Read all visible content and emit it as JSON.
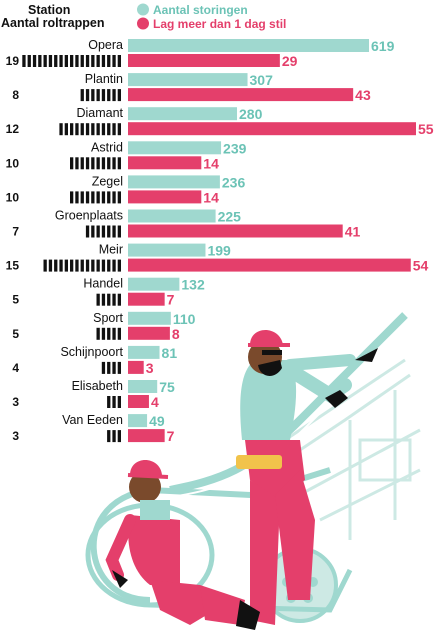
{
  "legend": {
    "station_label": "Station",
    "escalators_label": "Aantal roltrappen",
    "series_a_label": "Aantal storingen",
    "series_b_label": "Lag meer dan 1 dag stil"
  },
  "colors": {
    "teal": "#9fd8cf",
    "teal_text": "#6cc3b6",
    "pink": "#e43f6b",
    "black": "#111111"
  },
  "chart_data": {
    "type": "bar",
    "orientation": "horizontal",
    "categories": [
      "Opera",
      "Plantin",
      "Diamant",
      "Astrid",
      "Zegel",
      "Groenplaats",
      "Meir",
      "Handel",
      "Sport",
      "Schijnpoort",
      "Elisabeth",
      "Van Eeden"
    ],
    "escalators": [
      19,
      8,
      12,
      10,
      10,
      7,
      15,
      5,
      5,
      4,
      3,
      3
    ],
    "series": [
      {
        "name": "Aantal storingen",
        "values": [
          619,
          307,
          280,
          239,
          236,
          225,
          199,
          132,
          110,
          81,
          75,
          49
        ]
      },
      {
        "name": "Lag meer dan 1 dag stil",
        "values": [
          29,
          43,
          55,
          14,
          14,
          41,
          54,
          7,
          8,
          3,
          4,
          7
        ]
      }
    ]
  },
  "illustration": {
    "description_icon": "escalator-workers-illustration-icon"
  }
}
